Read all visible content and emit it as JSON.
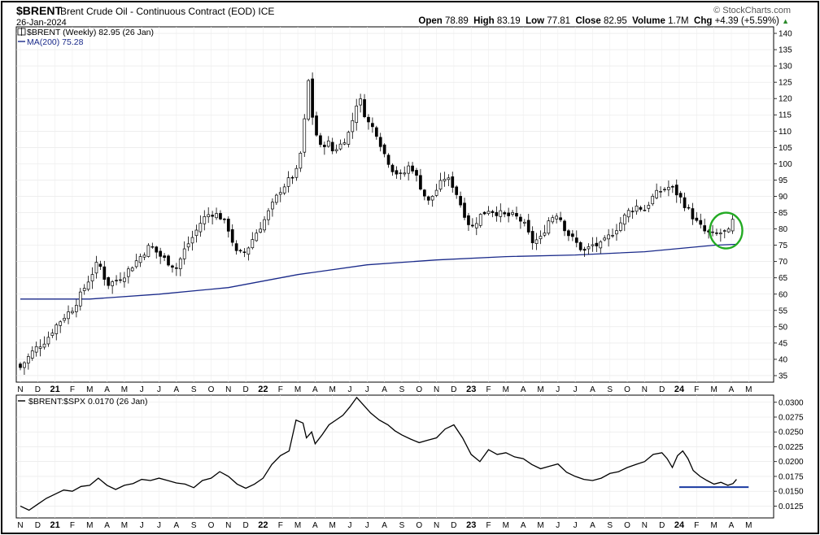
{
  "header": {
    "symbol": "$BRENT",
    "description": "Brent Crude Oil - Continuous Contract (EOD) ICE",
    "date": "26-Jan-2024",
    "logo": "© StockCharts.com",
    "open_label": "Open",
    "open": "78.89",
    "high_label": "High",
    "high": "83.19",
    "low_label": "Low",
    "low": "77.81",
    "close_label": "Close",
    "close": "82.95",
    "volume_label": "Volume",
    "volume": "1.7M",
    "chg_label": "Chg",
    "chg": "+4.39 (+5.59%)",
    "chg_arrow": "▲"
  },
  "colors": {
    "ma": "#1a2a8a",
    "highlight_circle": "#22aa22",
    "support_line": "#1a3aa0",
    "candle": "#000000"
  },
  "chart_data": [
    {
      "type": "candlestick",
      "legend": [
        "$BRENT (Weekly) 82.95 (26 Jan)",
        "MA(200) 75.28"
      ],
      "x_tick_labels": [
        "N",
        "D",
        "21",
        "F",
        "M",
        "A",
        "M",
        "J",
        "J",
        "A",
        "S",
        "O",
        "N",
        "D",
        "22",
        "F",
        "M",
        "A",
        "M",
        "J",
        "J",
        "A",
        "S",
        "O",
        "N",
        "D",
        "23",
        "F",
        "M",
        "A",
        "M",
        "J",
        "J",
        "A",
        "S",
        "O",
        "N",
        "D",
        "24",
        "F",
        "M",
        "A",
        "M"
      ],
      "ylim": [
        33,
        142
      ],
      "y_ticks": [
        35,
        40,
        45,
        50,
        55,
        60,
        65,
        70,
        75,
        80,
        85,
        90,
        95,
        100,
        105,
        110,
        115,
        120,
        125,
        130,
        135,
        140
      ],
      "x_range_months": [
        0,
        43
      ],
      "close_series": [
        [
          0.0,
          37.5
        ],
        [
          0.8,
          43
        ],
        [
          1.5,
          46
        ],
        [
          2.0,
          50
        ],
        [
          2.5,
          53
        ],
        [
          3.0,
          55.5
        ],
        [
          3.5,
          60
        ],
        [
          4.0,
          65
        ],
        [
          4.5,
          70
        ],
        [
          5.0,
          63
        ],
        [
          5.5,
          64
        ],
        [
          6.0,
          66
        ],
        [
          6.5,
          69
        ],
        [
          7.0,
          72
        ],
        [
          7.5,
          75
        ],
        [
          8.0,
          72
        ],
        [
          8.5,
          70
        ],
        [
          9.0,
          68
        ],
        [
          9.5,
          74
        ],
        [
          10.0,
          78
        ],
        [
          10.5,
          83
        ],
        [
          11.0,
          85
        ],
        [
          11.5,
          84
        ],
        [
          12.0,
          80
        ],
        [
          12.5,
          72
        ],
        [
          13.0,
          73
        ],
        [
          13.5,
          78
        ],
        [
          14.0,
          82
        ],
        [
          14.5,
          87
        ],
        [
          15.0,
          92
        ],
        [
          15.5,
          95
        ],
        [
          16.0,
          98
        ],
        [
          16.3,
          108
        ],
        [
          16.6,
          126
        ],
        [
          16.9,
          112
        ],
        [
          17.3,
          105
        ],
        [
          17.7,
          107
        ],
        [
          18.0,
          104
        ],
        [
          18.5,
          106
        ],
        [
          19.0,
          110
        ],
        [
          19.5,
          121
        ],
        [
          20.0,
          113
        ],
        [
          20.5,
          110
        ],
        [
          21.0,
          103
        ],
        [
          21.5,
          98
        ],
        [
          22.0,
          96
        ],
        [
          22.5,
          100
        ],
        [
          23.0,
          94
        ],
        [
          23.5,
          88
        ],
        [
          24.0,
          92
        ],
        [
          24.5,
          96
        ],
        [
          25.0,
          93
        ],
        [
          25.5,
          86
        ],
        [
          26.0,
          80
        ],
        [
          26.5,
          84
        ],
        [
          27.0,
          86
        ],
        [
          27.5,
          85
        ],
        [
          28.0,
          84
        ],
        [
          28.5,
          84
        ],
        [
          29.0,
          82
        ],
        [
          29.5,
          76
        ],
        [
          30.0,
          77
        ],
        [
          30.5,
          83
        ],
        [
          31.0,
          85
        ],
        [
          31.5,
          79
        ],
        [
          32.0,
          76
        ],
        [
          32.5,
          73
        ],
        [
          33.0,
          75
        ],
        [
          33.5,
          75
        ],
        [
          34.0,
          78
        ],
        [
          34.5,
          81
        ],
        [
          35.0,
          85
        ],
        [
          35.5,
          87
        ],
        [
          36.0,
          86
        ],
        [
          36.5,
          90
        ],
        [
          37.0,
          92
        ],
        [
          37.5,
          93
        ],
        [
          38.0,
          90
        ],
        [
          38.5,
          86
        ],
        [
          39.0,
          82
        ],
        [
          39.5,
          79
        ],
        [
          40.0,
          78
        ],
        [
          40.5,
          79
        ],
        [
          41.0,
          78.9
        ],
        [
          41.3,
          82.95
        ]
      ],
      "ma200_series": [
        [
          0,
          58.5
        ],
        [
          4,
          58.5
        ],
        [
          8,
          60
        ],
        [
          12,
          62
        ],
        [
          16,
          66
        ],
        [
          20,
          69
        ],
        [
          24,
          70.5
        ],
        [
          28,
          71.5
        ],
        [
          32,
          72
        ],
        [
          36,
          73
        ],
        [
          38,
          74
        ],
        [
          40,
          75
        ],
        [
          41.3,
          75.28
        ]
      ],
      "annotations": [
        {
          "type": "circle",
          "x": 40.7,
          "y": 79.5
        }
      ]
    },
    {
      "type": "line",
      "legend": [
        "$BRENT:$SPX 0.0170 (26 Jan)"
      ],
      "x_tick_labels": [
        "N",
        "D",
        "21",
        "F",
        "M",
        "A",
        "M",
        "J",
        "J",
        "A",
        "S",
        "O",
        "N",
        "D",
        "22",
        "F",
        "M",
        "A",
        "M",
        "J",
        "J",
        "A",
        "S",
        "O",
        "N",
        "D",
        "23",
        "F",
        "M",
        "A",
        "M",
        "J",
        "J",
        "A",
        "S",
        "O",
        "N",
        "D",
        "24",
        "F",
        "M",
        "A",
        "M"
      ],
      "ylim": [
        0.0105,
        0.0312
      ],
      "y_ticks": [
        0.0125,
        0.015,
        0.0175,
        0.02,
        0.0225,
        0.025,
        0.0275,
        0.03
      ],
      "y_tick_labels": [
        "0.0125",
        "0.0150",
        "0.0175",
        "0.0200",
        "0.0225",
        "0.0250",
        "0.0275",
        "0.0300"
      ],
      "series": [
        {
          "values": [
            [
              0.0,
              0.0125
            ],
            [
              0.5,
              0.0118
            ],
            [
              1.0,
              0.0128
            ],
            [
              1.5,
              0.0138
            ],
            [
              2.0,
              0.0145
            ],
            [
              2.5,
              0.0152
            ],
            [
              3.0,
              0.015
            ],
            [
              3.5,
              0.0158
            ],
            [
              4.0,
              0.016
            ],
            [
              4.5,
              0.0172
            ],
            [
              5.0,
              0.016
            ],
            [
              5.5,
              0.0153
            ],
            [
              6.0,
              0.016
            ],
            [
              6.5,
              0.0163
            ],
            [
              7.0,
              0.017
            ],
            [
              7.5,
              0.0168
            ],
            [
              8.0,
              0.0172
            ],
            [
              8.5,
              0.0168
            ],
            [
              9.0,
              0.0164
            ],
            [
              9.5,
              0.0162
            ],
            [
              10.0,
              0.0156
            ],
            [
              10.5,
              0.0168
            ],
            [
              11.0,
              0.0172
            ],
            [
              11.5,
              0.0183
            ],
            [
              12.0,
              0.0175
            ],
            [
              12.5,
              0.0162
            ],
            [
              13.0,
              0.0155
            ],
            [
              13.5,
              0.0162
            ],
            [
              14.0,
              0.0172
            ],
            [
              14.5,
              0.0195
            ],
            [
              15.0,
              0.021
            ],
            [
              15.5,
              0.0218
            ],
            [
              15.9,
              0.027
            ],
            [
              16.3,
              0.0265
            ],
            [
              16.5,
              0.024
            ],
            [
              16.8,
              0.025
            ],
            [
              17.0,
              0.023
            ],
            [
              17.4,
              0.0245
            ],
            [
              17.8,
              0.0262
            ],
            [
              18.2,
              0.027
            ],
            [
              18.6,
              0.0278
            ],
            [
              19.0,
              0.0292
            ],
            [
              19.4,
              0.0308
            ],
            [
              19.8,
              0.0295
            ],
            [
              20.2,
              0.0282
            ],
            [
              20.7,
              0.027
            ],
            [
              21.2,
              0.0262
            ],
            [
              21.6,
              0.0252
            ],
            [
              22.0,
              0.0245
            ],
            [
              22.5,
              0.0238
            ],
            [
              23.0,
              0.0232
            ],
            [
              23.5,
              0.0236
            ],
            [
              24.0,
              0.024
            ],
            [
              24.5,
              0.0255
            ],
            [
              25.0,
              0.0262
            ],
            [
              25.5,
              0.024
            ],
            [
              26.0,
              0.0212
            ],
            [
              26.5,
              0.02
            ],
            [
              27.0,
              0.022
            ],
            [
              27.5,
              0.0212
            ],
            [
              28.0,
              0.0215
            ],
            [
              28.5,
              0.0208
            ],
            [
              29.0,
              0.0205
            ],
            [
              29.5,
              0.0195
            ],
            [
              30.0,
              0.0188
            ],
            [
              30.5,
              0.0192
            ],
            [
              31.0,
              0.0196
            ],
            [
              31.5,
              0.0182
            ],
            [
              32.0,
              0.0175
            ],
            [
              32.5,
              0.017
            ],
            [
              33.0,
              0.0168
            ],
            [
              33.5,
              0.0172
            ],
            [
              34.0,
              0.018
            ],
            [
              34.5,
              0.0183
            ],
            [
              35.0,
              0.019
            ],
            [
              35.5,
              0.0195
            ],
            [
              36.0,
              0.02
            ],
            [
              36.5,
              0.0212
            ],
            [
              37.0,
              0.0215
            ],
            [
              37.3,
              0.0205
            ],
            [
              37.6,
              0.019
            ],
            [
              37.9,
              0.021
            ],
            [
              38.2,
              0.0218
            ],
            [
              38.5,
              0.0205
            ],
            [
              38.8,
              0.0185
            ],
            [
              39.2,
              0.0175
            ],
            [
              39.6,
              0.0168
            ],
            [
              40.0,
              0.0162
            ],
            [
              40.4,
              0.0165
            ],
            [
              40.8,
              0.016
            ],
            [
              41.1,
              0.0163
            ],
            [
              41.3,
              0.017
            ]
          ]
        }
      ],
      "annotations": [
        {
          "type": "hline",
          "y": 0.0157,
          "x_from": 38.0,
          "x_to": 42.0
        }
      ]
    }
  ]
}
